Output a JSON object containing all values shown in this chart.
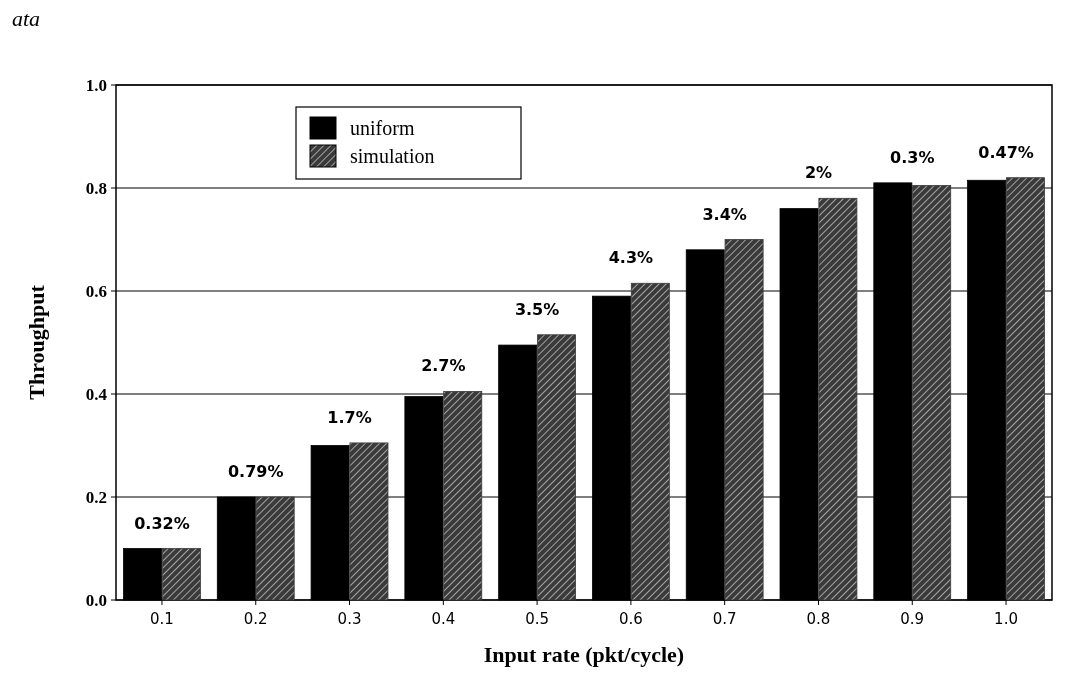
{
  "chart_data": {
    "type": "bar",
    "xlabel": "Input rate (pkt/cycle)",
    "ylabel": "Throughput",
    "categories": [
      "0.1",
      "0.2",
      "0.3",
      "0.4",
      "0.5",
      "0.6",
      "0.7",
      "0.8",
      "0.9",
      "1.0"
    ],
    "series": [
      {
        "name": "uniform",
        "color": "#000000",
        "values": [
          0.1,
          0.2,
          0.3,
          0.395,
          0.495,
          0.59,
          0.68,
          0.76,
          0.81,
          0.815
        ]
      },
      {
        "name": "simulation",
        "color": "#3a3a3a",
        "values": [
          0.1,
          0.2,
          0.305,
          0.405,
          0.515,
          0.615,
          0.7,
          0.78,
          0.805,
          0.82
        ]
      }
    ],
    "ylim": [
      0,
      1
    ],
    "yticks": [
      {
        "value": 0,
        "label": "0.0"
      },
      0.2,
      0.4,
      0.6,
      0.8,
      {
        "value": 1,
        "label": "1.0"
      }
    ],
    "grid": "y",
    "legend": "top left",
    "annotations": [
      "ata",
      {
        "text": "0.32%",
        "x": "0.1",
        "y": 0.1
      },
      {
        "text": "0.79%",
        "x": "0.2",
        "y": 0.2
      },
      {
        "text": "1.7%",
        "x": "0.3",
        "y": 0.305
      },
      {
        "text": "2.7%",
        "x": "0.4",
        "y": 0.405
      },
      {
        "text": "3.5%",
        "x": "0.5",
        "y": 0.515
      },
      {
        "text": "4.3%",
        "x": "0.6",
        "y": 0.615
      },
      {
        "text": "3.4%",
        "x": "0.7",
        "y": 0.7
      },
      {
        "text": "2%",
        "x": "0.8",
        "y": 0.78
      },
      {
        "text": "0.3%",
        "x": "0.9",
        "y": 0.81
      },
      {
        "text": "0.47%",
        "x": "1.0",
        "y": 0.82
      }
    ]
  }
}
